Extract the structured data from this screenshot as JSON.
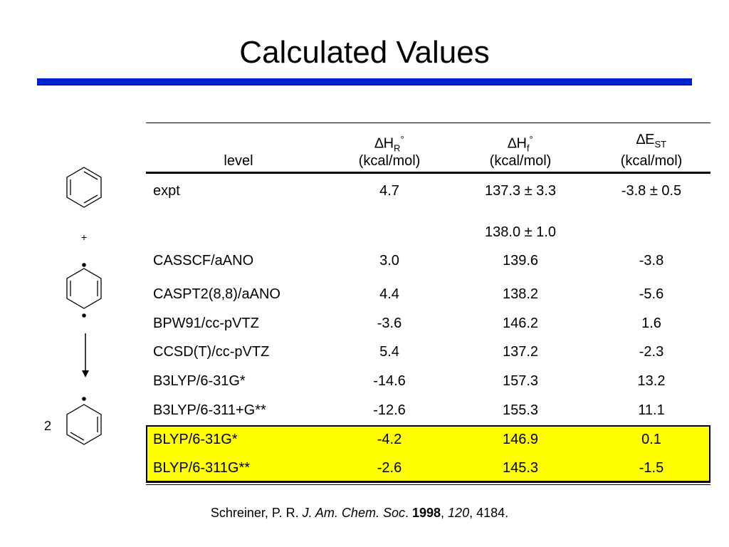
{
  "title": "Calculated Values",
  "scheme": {
    "plus": "+",
    "coefficient": "2"
  },
  "table": {
    "header": [
      {
        "text": "level"
      },
      {
        "sym": "∆H",
        "sub": "R",
        "sup": "°",
        "unit": "(kcal/mol)"
      },
      {
        "sym": "∆H",
        "sub": "f",
        "sup": "°",
        "unit": "(kcal/mol)"
      },
      {
        "sym": "∆E",
        "sub": "ST",
        "unit": "(kcal/mol)"
      }
    ],
    "rows": [
      [
        "expt",
        "4.7",
        [
          "137.3 ± 3.3",
          "138.0 ± 1.0"
        ],
        "-3.8 ± 0.5"
      ],
      [
        "CASSCF/aANO",
        "3.0",
        "139.6",
        "-3.8"
      ],
      [
        "CASPT2(8,8)/aANO",
        "4.4",
        "138.2",
        "-5.6"
      ],
      [
        "BPW91/cc-pVTZ",
        "-3.6",
        "146.2",
        "1.6"
      ],
      [
        "CCSD(T)/cc-pVTZ",
        "5.4",
        "137.2",
        "-2.3"
      ],
      [
        "B3LYP/6-31G*",
        "-14.6",
        "157.3",
        "13.2"
      ],
      [
        "B3LYP/6-311+G**",
        "-12.6",
        "155.3",
        "11.1"
      ],
      [
        "BLYP/6-31G*",
        "-4.2",
        "146.9",
        "0.1"
      ],
      [
        "BLYP/6-311G**",
        "-2.6",
        "145.3",
        "-1.5"
      ]
    ],
    "highlight_rows": [
      7,
      8
    ],
    "highlight_color": "#ffff00"
  },
  "citation": [
    {
      "text": "Schreiner, P. R. "
    },
    {
      "text": "J. Am. Chem. Soc",
      "style": "italic"
    },
    {
      "text": ". "
    },
    {
      "text": "1998",
      "style": "bold"
    },
    {
      "text": ", "
    },
    {
      "text": "120",
      "style": "italic"
    },
    {
      "text": ", 4184."
    }
  ]
}
